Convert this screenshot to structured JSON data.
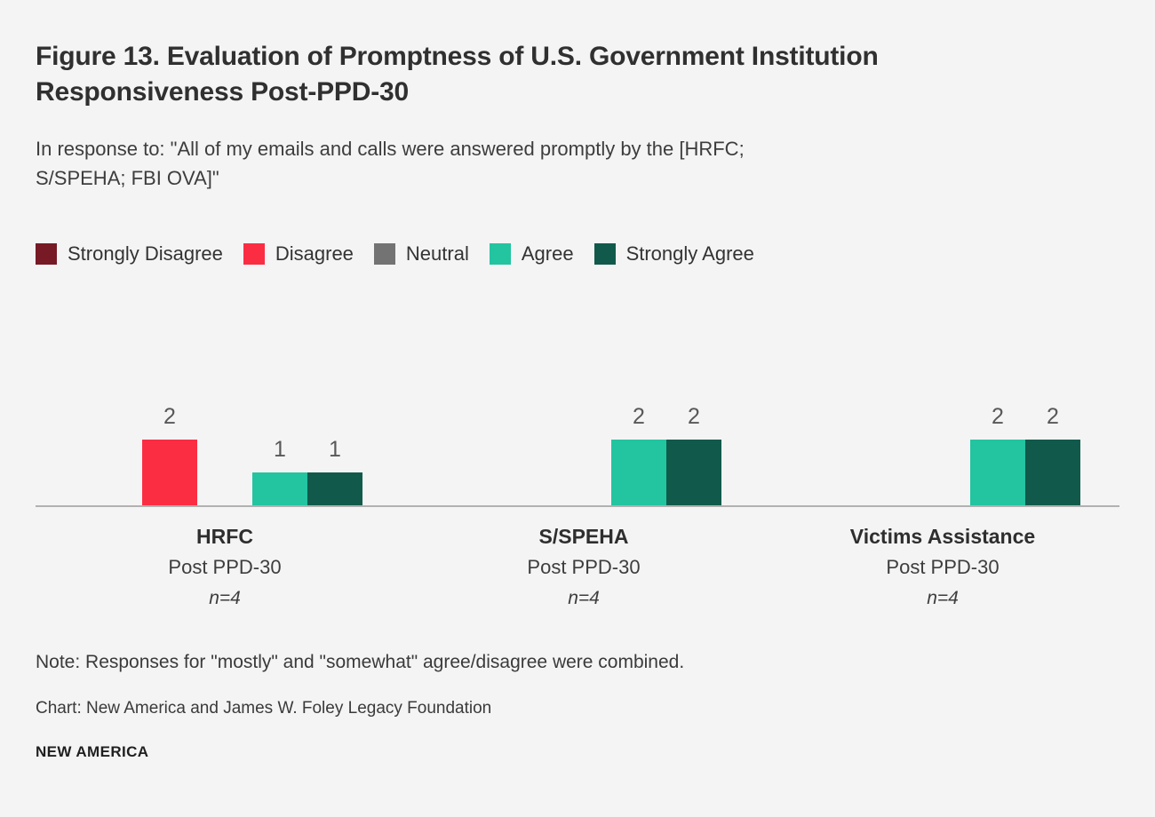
{
  "header": {
    "title": "Figure 13. Evaluation of Promptness of U.S. Government Institution Responsiveness Post-PPD-30",
    "subtitle": "In response to: \"All of my emails and calls were answered promptly by the [HRFC; S/SPEHA; FBI OVA]\""
  },
  "chart_data": {
    "type": "bar",
    "title": "Figure 13. Evaluation of Promptness of U.S. Government Institution Responsiveness Post-PPD-30",
    "legend_position": "top",
    "value_labels_shown": true,
    "grid": false,
    "ylim": [
      0,
      2
    ],
    "categories": [
      {
        "label": "HRFC",
        "sublabel": "Post PPD-30",
        "n": "n=4"
      },
      {
        "label": "S/SPEHA",
        "sublabel": "Post PPD-30",
        "n": "n=4"
      },
      {
        "label": "Victims Assistance",
        "sublabel": "Post PPD-30",
        "n": "n=4"
      }
    ],
    "series": [
      {
        "name": "Strongly Disagree",
        "color": "#771a26",
        "values": [
          0,
          0,
          0
        ]
      },
      {
        "name": "Disagree",
        "color": "#fb2d43",
        "values": [
          2,
          0,
          0
        ]
      },
      {
        "name": "Neutral",
        "color": "#737373",
        "values": [
          0,
          0,
          0
        ]
      },
      {
        "name": "Agree",
        "color": "#23c4a0",
        "values": [
          1,
          2,
          2
        ]
      },
      {
        "name": "Strongly Agree",
        "color": "#115a4b",
        "values": [
          1,
          2,
          2
        ]
      }
    ]
  },
  "footer": {
    "note": "Note: Responses for \"mostly\" and \"somewhat\" agree/disagree were combined.",
    "credit": "Chart: New America and James W. Foley Legacy Foundation",
    "logo": "NEW AMERICA"
  }
}
